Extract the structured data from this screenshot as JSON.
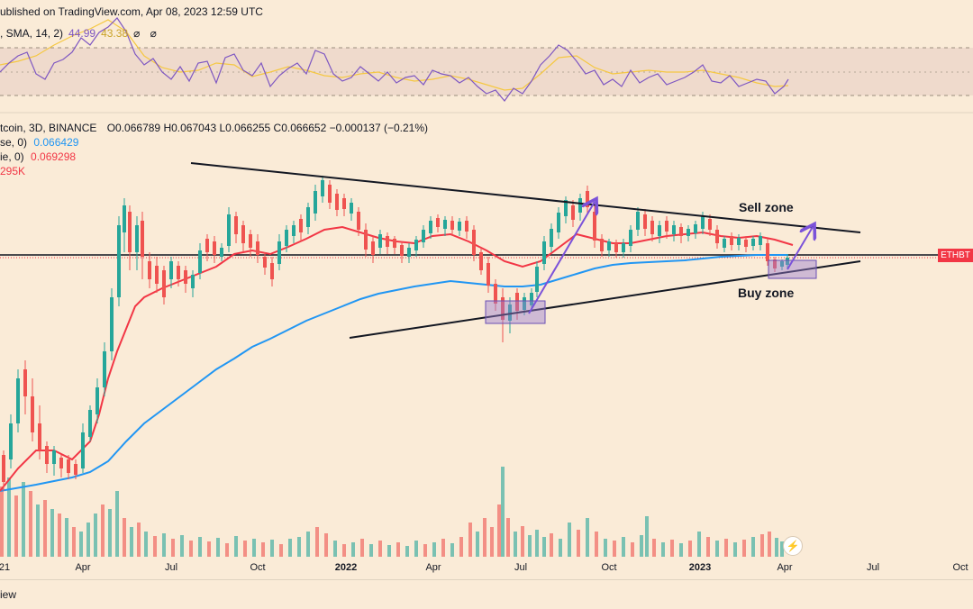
{
  "header": {
    "published": "ublished on TradingView.com, Apr 08, 2023 12:59 UTC"
  },
  "rsi": {
    "label": ", SMA, 14, 2)",
    "value": "44.99",
    "value2": "43.38",
    "icons": "⌀ ⌀"
  },
  "legend": {
    "symbol": "tcoin, 3D, BINANCE",
    "ohlc": "O0.066789 H0.067043 L0.066255 C0.066652 −0.000137 (−0.21%)",
    "ma1_prefix": "se, 0)",
    "ma1_value": "0.066429",
    "ma2_prefix": "ie, 0)",
    "ma2_value": "0.069298",
    "volume": "295K"
  },
  "annotations": {
    "sell": "Sell zone",
    "buy": "Buy zone"
  },
  "price_tag": "ETHBT",
  "xaxis": {
    "labels": [
      "21",
      "Apr",
      "Jul",
      "Oct",
      "2022",
      "Apr",
      "Jul",
      "Oct",
      "2023",
      "Apr",
      "Jul",
      "Oct"
    ]
  },
  "footer": {
    "text": "iew"
  },
  "colors": {
    "ma_fast": "#f23645",
    "ma_slow": "#2196f3",
    "rsi": "#7e57c2",
    "rsi_ma": "#f5c842",
    "up": "#26a69a",
    "down": "#ef5350",
    "annotation": "#7b52d9"
  },
  "icons": {
    "flash": "lightning-icon"
  }
}
